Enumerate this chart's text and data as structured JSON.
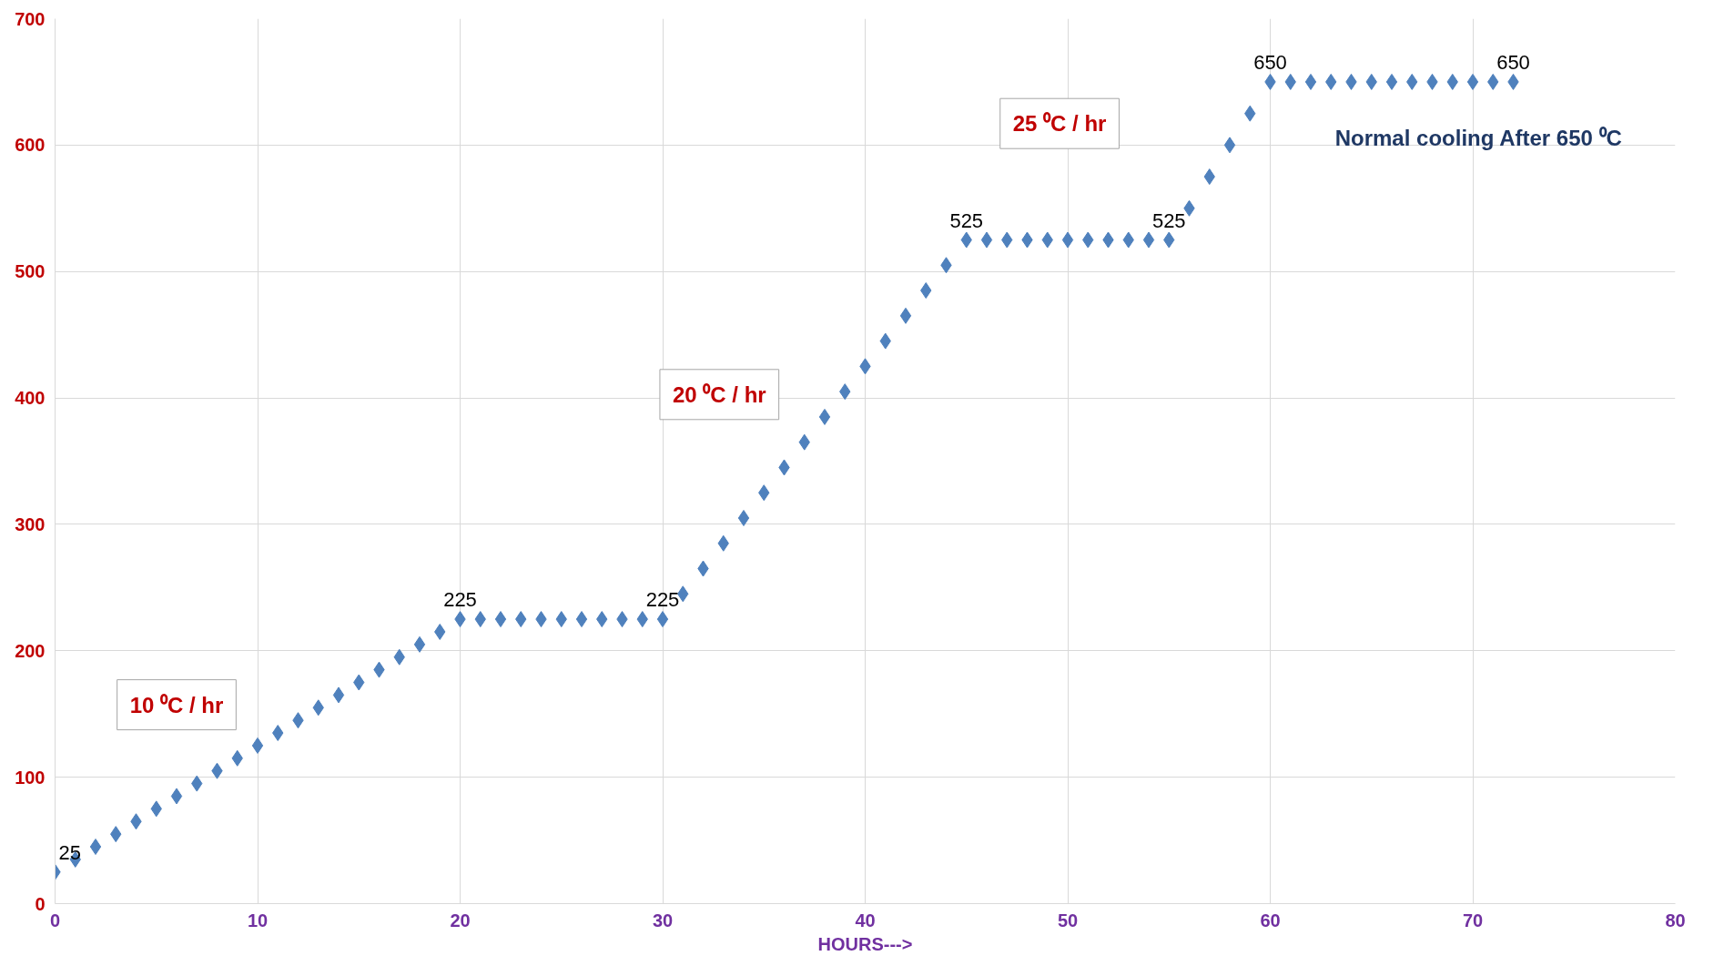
{
  "chart_data": {
    "type": "scatter",
    "xlabel": "HOURS--->",
    "marker": "diamond",
    "grid": true,
    "x": [
      0,
      1,
      2,
      3,
      4,
      5,
      6,
      7,
      8,
      9,
      10,
      11,
      12,
      13,
      14,
      15,
      16,
      17,
      18,
      19,
      20,
      21,
      22,
      23,
      24,
      25,
      26,
      27,
      28,
      29,
      30,
      31,
      32,
      33,
      34,
      35,
      36,
      37,
      38,
      39,
      40,
      41,
      42,
      43,
      44,
      45,
      46,
      47,
      48,
      49,
      50,
      51,
      52,
      53,
      54,
      55,
      56,
      57,
      58,
      59,
      60,
      61,
      62,
      63,
      64,
      65,
      66,
      67,
      68,
      69,
      70,
      71,
      72
    ],
    "series": [
      {
        "color": "#4f81bd",
        "values": [
          25,
          35,
          45,
          55,
          65,
          75,
          85,
          95,
          105,
          115,
          125,
          135,
          145,
          155,
          165,
          175,
          185,
          195,
          205,
          215,
          225,
          225,
          225,
          225,
          225,
          225,
          225,
          225,
          225,
          225,
          225,
          245,
          265,
          285,
          305,
          325,
          345,
          365,
          385,
          405,
          425,
          445,
          465,
          485,
          505,
          525,
          525,
          525,
          525,
          525,
          525,
          525,
          525,
          525,
          525,
          525,
          550,
          575,
          600,
          625,
          650,
          650,
          650,
          650,
          650,
          650,
          650,
          650,
          650,
          650,
          650,
          650,
          650
        ],
        "value_labels": [
          "25",
          null,
          null,
          null,
          null,
          null,
          null,
          null,
          null,
          null,
          null,
          null,
          null,
          null,
          null,
          null,
          null,
          null,
          null,
          null,
          "225",
          null,
          null,
          null,
          null,
          null,
          null,
          null,
          null,
          null,
          "225",
          null,
          null,
          null,
          null,
          null,
          null,
          null,
          null,
          null,
          null,
          null,
          null,
          null,
          null,
          "525",
          null,
          null,
          null,
          null,
          null,
          null,
          null,
          null,
          null,
          "525",
          null,
          null,
          null,
          null,
          "650",
          null,
          null,
          null,
          null,
          null,
          null,
          null,
          null,
          null,
          null,
          null,
          "650"
        ]
      }
    ],
    "xlim": [
      0,
      80
    ],
    "xticks": [
      0,
      10,
      20,
      30,
      40,
      50,
      60,
      70,
      80
    ],
    "ylim": [
      0,
      700
    ],
    "yticks": [
      0,
      100,
      200,
      300,
      400,
      500,
      600,
      700
    ],
    "annotations": [
      "10 ⁰C / hr",
      "20 ⁰C / hr",
      "25 ⁰C / hr",
      "Normal cooling After 650 ⁰C"
    ]
  }
}
